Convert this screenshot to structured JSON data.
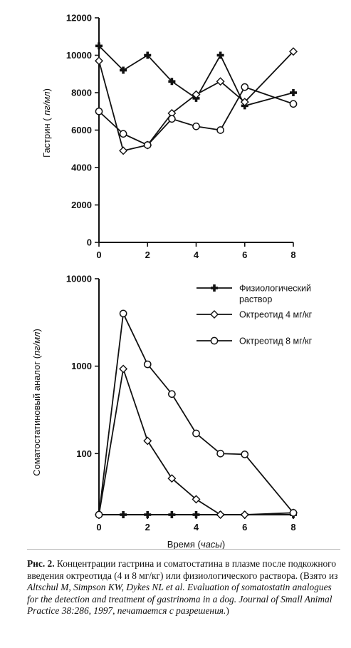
{
  "chart_data": [
    {
      "type": "line",
      "ylabel_main": "Гастрин",
      "ylabel_unit": "пг/мл",
      "x_ticks": [
        0,
        2,
        4,
        6,
        8
      ],
      "y_ticks": [
        0,
        2000,
        4000,
        6000,
        8000,
        10000,
        12000
      ],
      "y_tick_labels": [
        "0",
        "2000",
        "4000",
        "6000",
        "8000",
        "10000",
        "12000"
      ],
      "xlim": [
        0,
        8
      ],
      "ylim": [
        0,
        12000
      ],
      "series": [
        {
          "name": "Физиологический раствор",
          "marker": "plus",
          "x": [
            0,
            1,
            2,
            3,
            4,
            5,
            6,
            8
          ],
          "y": [
            10500,
            9200,
            10000,
            8600,
            7700,
            10000,
            7300,
            8000
          ]
        },
        {
          "name": "Октреотид 4 мг/кг",
          "marker": "diamond",
          "x": [
            0,
            1,
            2,
            3,
            4,
            5,
            6,
            8
          ],
          "y": [
            9700,
            4900,
            5200,
            6900,
            7900,
            8600,
            7500,
            10200
          ]
        },
        {
          "name": "Октреотид 8 мг/кг",
          "marker": "circle",
          "x": [
            0,
            1,
            2,
            3,
            4,
            5,
            6,
            8
          ],
          "y": [
            7000,
            5800,
            5200,
            6600,
            6200,
            6000,
            8300,
            7400
          ]
        }
      ]
    },
    {
      "type": "line",
      "yscale": "log",
      "ylabel_main": "Соматостатиновый аналог",
      "ylabel_unit": "пг/мл",
      "xlabel_main": "Время",
      "xlabel_unit": "часы",
      "x_ticks": [
        0,
        2,
        4,
        6,
        8
      ],
      "y_ticks": [
        100,
        1000,
        10000
      ],
      "y_tick_labels": [
        "100",
        "1000",
        "10000"
      ],
      "xlim": [
        0,
        8
      ],
      "ylim": [
        20,
        10000
      ],
      "legend_position": "top-right",
      "series": [
        {
          "name": "Физиологический раствор",
          "marker": "plus",
          "x": [
            0,
            1,
            2,
            3,
            4,
            5,
            6,
            8
          ],
          "y": [
            20,
            20,
            20,
            20,
            20,
            20,
            20,
            20
          ]
        },
        {
          "name": "Октреотид 4 мг/кг",
          "marker": "diamond",
          "x": [
            0,
            1,
            2,
            3,
            4,
            5,
            6,
            8
          ],
          "y": [
            20,
            930,
            140,
            52,
            30,
            20,
            20,
            21
          ]
        },
        {
          "name": "Октреотид 8 мг/кг",
          "marker": "circle",
          "x": [
            0,
            1,
            2,
            3,
            4,
            5,
            6,
            8
          ],
          "y": [
            20,
            4000,
            1050,
            480,
            170,
            100,
            98,
            21
          ]
        }
      ]
    }
  ],
  "legend": {
    "items": [
      {
        "marker": "plus",
        "line1": "Физиологический",
        "line2": "раствор"
      },
      {
        "marker": "diamond",
        "line1": "Октреотид 4 мг/кг",
        "line2": ""
      },
      {
        "marker": "circle",
        "line1": "Октреотид 8 мг/кг",
        "line2": ""
      }
    ]
  },
  "caption": {
    "label": "Рис. 2.",
    "text1": " Концентрации гастрина и соматостатина в плазме после подкожного введения октреотида (4 и 8 мг/кг) или физиологического раствора. (Взято из ",
    "ref_italic": "Altschul M, Simpson KW, Dykes NL et al. Evaluation of somatostatin analogues for the detection and treatment of gastrinoma in a dog. Journal of Small Animal Practice 38:286, 1997, печатается с разрешения.",
    "text2": ")"
  }
}
